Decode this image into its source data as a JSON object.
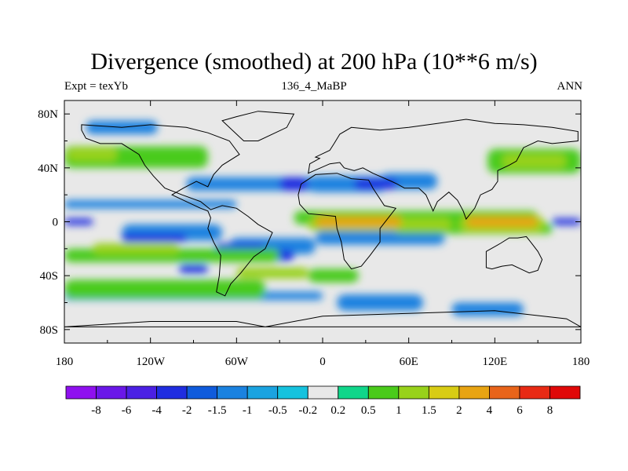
{
  "chart_data": {
    "type": "heatmap",
    "title": "Divergence (smoothed) at 200 hPa (10**6 m/s)",
    "left_string": "Expt = texYb",
    "center_string": "136_4_MaBP",
    "right_string": "ANN",
    "x_ticks": [
      "180",
      "120W",
      "60W",
      "0",
      "60E",
      "120E",
      "180"
    ],
    "y_ticks": [
      "80N",
      "40N",
      "0",
      "40S",
      "80S"
    ],
    "xlim": [
      -180,
      180
    ],
    "ylim": [
      -90,
      90
    ],
    "colorbar": {
      "labels": [
        "-8",
        "-6",
        "-4",
        "-2",
        "-1.5",
        "-1",
        "-0.5",
        "-0.2",
        "0.2",
        "0.5",
        "1",
        "1.5",
        "2",
        "4",
        "6",
        "8"
      ],
      "colors": [
        "#8f10ef",
        "#6a17e8",
        "#4b20e4",
        "#1f2de0",
        "#0f5bdc",
        "#1a82e0",
        "#1aa3e0",
        "#15c2de",
        "#e8e8e8",
        "#10d68a",
        "#4acb1a",
        "#98d21a",
        "#d8cc14",
        "#e8a412",
        "#e8641a",
        "#e82a14",
        "#e00808"
      ]
    },
    "divergence_fields": [
      {
        "level": "-1",
        "regions": [
          [
            -95,
            28,
            120,
            10
          ],
          [
            -10,
            28,
            55,
            12
          ],
          [
            40,
            30,
            40,
            12
          ],
          [
            -140,
            -8,
            70,
            12
          ],
          [
            -120,
            -25,
            80,
            10
          ],
          [
            -5,
            -12,
            90,
            10
          ],
          [
            -65,
            -18,
            60,
            12
          ],
          [
            -165,
            70,
            50,
            10
          ],
          [
            -180,
            13,
            120,
            6
          ],
          [
            -180,
            -55,
            180,
            6
          ],
          [
            10,
            -60,
            60,
            12
          ],
          [
            90,
            -65,
            50,
            10
          ]
        ]
      },
      {
        "level": "-2",
        "regions": [
          [
            -30,
            28,
            20,
            10
          ],
          [
            22,
            28,
            30,
            8
          ],
          [
            -140,
            -12,
            45,
            6
          ],
          [
            -75,
            -20,
            35,
            8
          ],
          [
            -180,
            0,
            20,
            5
          ],
          [
            160,
            0,
            20,
            5
          ],
          [
            -45,
            -25,
            25,
            8
          ],
          [
            -100,
            -35,
            20,
            6
          ]
        ]
      },
      {
        "level": "0.5",
        "regions": [
          [
            -180,
            48,
            100,
            16
          ],
          [
            115,
            45,
            65,
            18
          ],
          [
            -180,
            -25,
            150,
            10
          ],
          [
            -180,
            -50,
            140,
            14
          ],
          [
            -20,
            3,
            170,
            10
          ],
          [
            50,
            -5,
            110,
            8
          ],
          [
            -10,
            -40,
            35,
            10
          ]
        ]
      },
      {
        "level": "1",
        "regions": [
          [
            -178,
            50,
            35,
            10
          ],
          [
            125,
            45,
            45,
            10
          ],
          [
            -160,
            -20,
            60,
            8
          ],
          [
            -60,
            -38,
            50,
            8
          ],
          [
            -10,
            -2,
            100,
            10
          ],
          [
            95,
            -2,
            60,
            12
          ]
        ]
      },
      {
        "level": "2",
        "regions": [
          [
            -5,
            0,
            60,
            8
          ],
          [
            100,
            0,
            50,
            8
          ]
        ]
      }
    ]
  }
}
